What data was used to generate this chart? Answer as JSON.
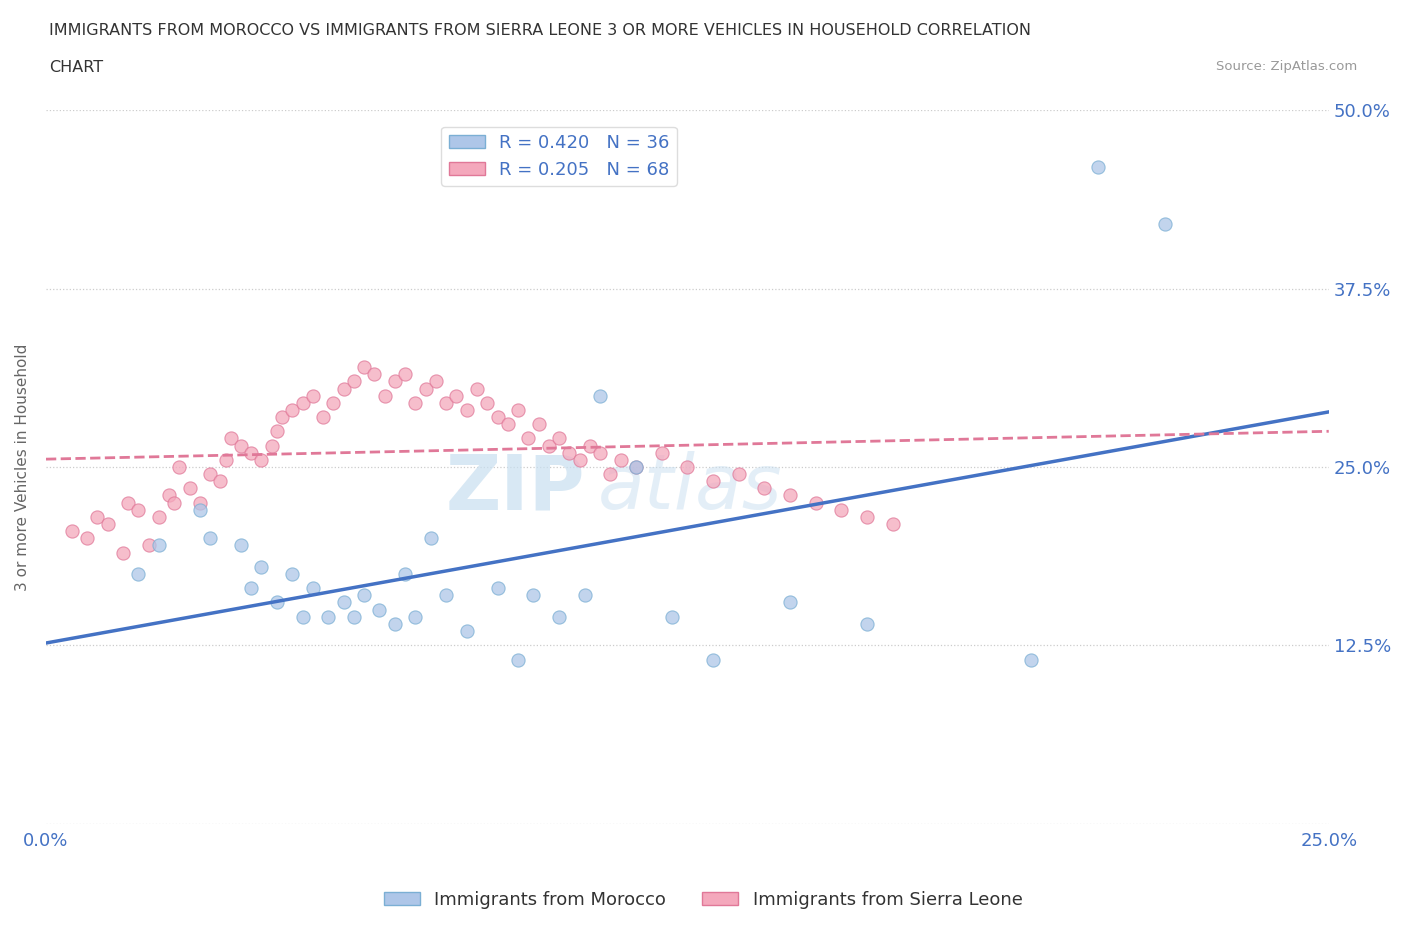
{
  "title_line1": "IMMIGRANTS FROM MOROCCO VS IMMIGRANTS FROM SIERRA LEONE 3 OR MORE VEHICLES IN HOUSEHOLD CORRELATION",
  "title_line2": "CHART",
  "source": "Source: ZipAtlas.com",
  "r_morocco": 0.42,
  "n_morocco": 36,
  "r_sierra_leone": 0.205,
  "n_sierra_leone": 68,
  "xlim": [
    0.0,
    0.25
  ],
  "ylim": [
    0.0,
    0.5
  ],
  "xlabel_ticks": [
    0.0,
    0.05,
    0.1,
    0.15,
    0.2,
    0.25
  ],
  "xlabel_labels": [
    "0.0%",
    "",
    "",
    "",
    "",
    "25.0%"
  ],
  "ylabel_ticks": [
    0.0,
    0.125,
    0.25,
    0.375,
    0.5
  ],
  "ylabel_labels": [
    "",
    "12.5%",
    "25.0%",
    "37.5%",
    "50.0%"
  ],
  "color_morocco": "#aec6e8",
  "color_sierra_leone": "#f4a8bc",
  "edge_morocco": "#7bafd4",
  "edge_sierra_leone": "#e07898",
  "watermark_zip": "ZIP",
  "watermark_atlas": "atlas",
  "morocco_x": [
    0.018,
    0.022,
    0.03,
    0.032,
    0.038,
    0.04,
    0.042,
    0.045,
    0.048,
    0.05,
    0.052,
    0.055,
    0.058,
    0.06,
    0.062,
    0.065,
    0.068,
    0.07,
    0.072,
    0.075,
    0.078,
    0.082,
    0.088,
    0.092,
    0.095,
    0.1,
    0.105,
    0.108,
    0.115,
    0.122,
    0.13,
    0.145,
    0.16,
    0.192,
    0.205,
    0.218
  ],
  "morocco_y": [
    0.175,
    0.195,
    0.22,
    0.2,
    0.195,
    0.165,
    0.18,
    0.155,
    0.175,
    0.145,
    0.165,
    0.145,
    0.155,
    0.145,
    0.16,
    0.15,
    0.14,
    0.175,
    0.145,
    0.2,
    0.16,
    0.135,
    0.165,
    0.115,
    0.16,
    0.145,
    0.16,
    0.3,
    0.25,
    0.145,
    0.115,
    0.155,
    0.14,
    0.115,
    0.46,
    0.42
  ],
  "sierra_leone_x": [
    0.005,
    0.008,
    0.01,
    0.012,
    0.015,
    0.016,
    0.018,
    0.02,
    0.022,
    0.024,
    0.025,
    0.026,
    0.028,
    0.03,
    0.032,
    0.034,
    0.035,
    0.036,
    0.038,
    0.04,
    0.042,
    0.044,
    0.045,
    0.046,
    0.048,
    0.05,
    0.052,
    0.054,
    0.056,
    0.058,
    0.06,
    0.062,
    0.064,
    0.066,
    0.068,
    0.07,
    0.072,
    0.074,
    0.076,
    0.078,
    0.08,
    0.082,
    0.084,
    0.086,
    0.088,
    0.09,
    0.092,
    0.094,
    0.096,
    0.098,
    0.1,
    0.102,
    0.104,
    0.106,
    0.108,
    0.11,
    0.112,
    0.115,
    0.12,
    0.125,
    0.13,
    0.135,
    0.14,
    0.145,
    0.15,
    0.155,
    0.16,
    0.165
  ],
  "sierra_leone_y": [
    0.205,
    0.2,
    0.215,
    0.21,
    0.19,
    0.225,
    0.22,
    0.195,
    0.215,
    0.23,
    0.225,
    0.25,
    0.235,
    0.225,
    0.245,
    0.24,
    0.255,
    0.27,
    0.265,
    0.26,
    0.255,
    0.265,
    0.275,
    0.285,
    0.29,
    0.295,
    0.3,
    0.285,
    0.295,
    0.305,
    0.31,
    0.32,
    0.315,
    0.3,
    0.31,
    0.315,
    0.295,
    0.305,
    0.31,
    0.295,
    0.3,
    0.29,
    0.305,
    0.295,
    0.285,
    0.28,
    0.29,
    0.27,
    0.28,
    0.265,
    0.27,
    0.26,
    0.255,
    0.265,
    0.26,
    0.245,
    0.255,
    0.25,
    0.26,
    0.25,
    0.24,
    0.245,
    0.235,
    0.23,
    0.225,
    0.22,
    0.215,
    0.21
  ]
}
